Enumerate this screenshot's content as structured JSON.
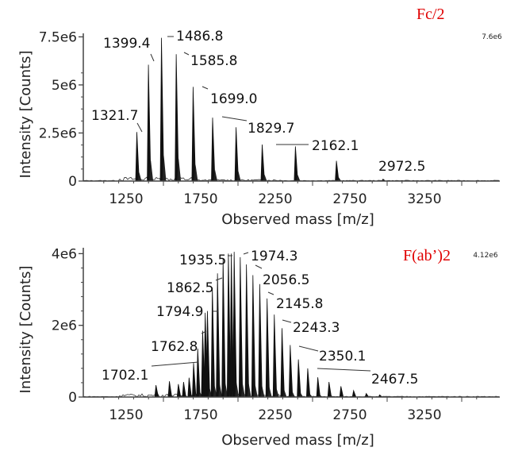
{
  "chart_data": [
    {
      "type": "line",
      "subtype": "mass-spectrum",
      "title": "Fc/2",
      "max_intensity_label": "7.6e6",
      "xlabel": "Observed mass [m/z]",
      "ylabel": "Intensity [Counts]",
      "xlim": [
        1050,
        3650
      ],
      "ylim": [
        0,
        7600000
      ],
      "x_ticks": [
        "1250",
        "1750",
        "2250",
        "2750",
        "3250"
      ],
      "x_tick_values": [
        1250,
        1750,
        2250,
        2750,
        3250
      ],
      "y_ticks": [
        "0",
        "2.5e6",
        "5e6",
        "7.5e6"
      ],
      "y_tick_values": [
        0,
        2500000,
        5000000,
        7500000
      ],
      "grid": false,
      "peaks": [
        {
          "label": "1321.7",
          "mz": 1321.7,
          "intensity": 2550000
        },
        {
          "label": "1399.4",
          "mz": 1399.4,
          "intensity": 6050000
        },
        {
          "label": "1486.8",
          "mz": 1486.8,
          "intensity": 7450000
        },
        {
          "label": "1585.8",
          "mz": 1585.8,
          "intensity": 6600000
        },
        {
          "label": "1699.0",
          "mz": 1699.0,
          "intensity": 4900000
        },
        {
          "label": "1829.7",
          "mz": 1829.7,
          "intensity": 3300000
        },
        {
          "label": "",
          "mz": 1987.0,
          "intensity": 2800000
        },
        {
          "label": "2162.1",
          "mz": 2162.1,
          "intensity": 1900000
        },
        {
          "label": "",
          "mz": 2385.0,
          "intensity": 1800000
        },
        {
          "label": "",
          "mz": 2660.0,
          "intensity": 1050000
        },
        {
          "label": "2972.5",
          "mz": 2972.5,
          "intensity": 100000
        }
      ]
    },
    {
      "type": "line",
      "subtype": "mass-spectrum",
      "title": "F(ab’)2",
      "max_intensity_label": "4.12e6",
      "xlabel": "Observed mass [m/z]",
      "ylabel": "Intensity [Counts]",
      "xlim": [
        1050,
        3650
      ],
      "ylim": [
        0,
        4120000
      ],
      "x_ticks": [
        "1250",
        "1750",
        "2250",
        "2750",
        "3250"
      ],
      "x_tick_values": [
        1250,
        1750,
        2250,
        2750,
        3250
      ],
      "y_ticks": [
        "0",
        "2e6",
        "4e6"
      ],
      "y_tick_values": [
        0,
        2000000,
        4000000
      ],
      "grid": false,
      "peaks": [
        {
          "label": "",
          "mz": 1450.0,
          "intensity": 330000
        },
        {
          "label": "",
          "mz": 1540.0,
          "intensity": 440000
        },
        {
          "label": "",
          "mz": 1600.0,
          "intensity": 360000
        },
        {
          "label": "",
          "mz": 1635.0,
          "intensity": 420000
        },
        {
          "label": "",
          "mz": 1672.0,
          "intensity": 540000
        },
        {
          "label": "1702.1",
          "mz": 1702.1,
          "intensity": 950000
        },
        {
          "label": "",
          "mz": 1730.0,
          "intensity": 1350000
        },
        {
          "label": "1762.8",
          "mz": 1762.8,
          "intensity": 1850000
        },
        {
          "label": "",
          "mz": 1780.0,
          "intensity": 2350000
        },
        {
          "label": "1794.9",
          "mz": 1794.9,
          "intensity": 2400000
        },
        {
          "label": "",
          "mz": 1828.0,
          "intensity": 3050000
        },
        {
          "label": "1862.5",
          "mz": 1862.5,
          "intensity": 3450000
        },
        {
          "label": "",
          "mz": 1900.0,
          "intensity": 3850000
        },
        {
          "label": "1935.5",
          "mz": 1935.5,
          "intensity": 4000000
        },
        {
          "label": "",
          "mz": 1955.0,
          "intensity": 4000000
        },
        {
          "label": "1974.3",
          "mz": 1974.3,
          "intensity": 4050000
        },
        {
          "label": "",
          "mz": 2015.0,
          "intensity": 3900000
        },
        {
          "label": "2056.5",
          "mz": 2056.5,
          "intensity": 3700000
        },
        {
          "label": "",
          "mz": 2100.0,
          "intensity": 3400000
        },
        {
          "label": "2145.8",
          "mz": 2145.8,
          "intensity": 3150000
        },
        {
          "label": "",
          "mz": 2195.0,
          "intensity": 2750000
        },
        {
          "label": "2243.3",
          "mz": 2243.3,
          "intensity": 2300000
        },
        {
          "label": "",
          "mz": 2295.0,
          "intensity": 1920000
        },
        {
          "label": "2350.1",
          "mz": 2350.1,
          "intensity": 1450000
        },
        {
          "label": "",
          "mz": 2405.0,
          "intensity": 1050000
        },
        {
          "label": "2467.5",
          "mz": 2467.5,
          "intensity": 800000
        },
        {
          "label": "",
          "mz": 2535.0,
          "intensity": 550000
        },
        {
          "label": "",
          "mz": 2610.0,
          "intensity": 420000
        },
        {
          "label": "",
          "mz": 2690.0,
          "intensity": 300000
        },
        {
          "label": "",
          "mz": 2775.0,
          "intensity": 180000
        },
        {
          "label": "",
          "mz": 2860.0,
          "intensity": 100000
        },
        {
          "label": "",
          "mz": 2950.0,
          "intensity": 60000
        }
      ]
    }
  ]
}
